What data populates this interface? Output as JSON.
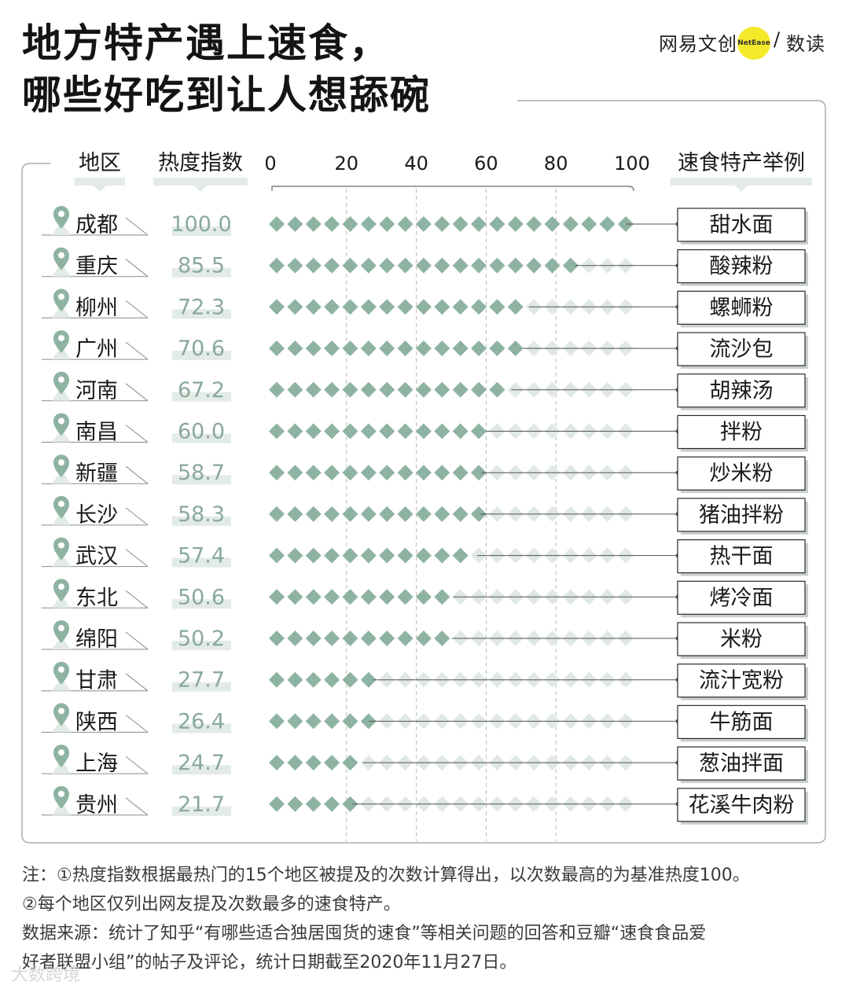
{
  "title_line1": "地方特产遇上速食，",
  "title_line2": "哪些好吃到让人想舔碗",
  "logo": {
    "brand": "网易文创",
    "badge": "NetEase",
    "slash": "/",
    "sub": "数读"
  },
  "headers": {
    "region": "地区",
    "index": "热度指数",
    "example": "速食特产举例"
  },
  "colors": {
    "accent": "#8fb3a2",
    "faint": "#dfe8e3",
    "text": "#1a1a1a",
    "label_bg": "#e2ebe6"
  },
  "chart_data": {
    "type": "bar",
    "xlim": [
      0,
      100
    ],
    "x_ticks": [
      "0",
      "20",
      "40",
      "60",
      "80",
      "100"
    ],
    "categories": [
      "成都",
      "重庆",
      "柳州",
      "广州",
      "河南",
      "南昌",
      "新疆",
      "长沙",
      "武汉",
      "东北",
      "绵阳",
      "甘肃",
      "陕西",
      "上海",
      "贵州"
    ],
    "values": [
      100.0,
      85.5,
      72.3,
      70.6,
      67.2,
      60.0,
      58.7,
      58.3,
      57.4,
      50.6,
      50.2,
      27.7,
      26.4,
      24.7,
      21.7
    ],
    "value_labels": [
      "100.0",
      "85.5",
      "72.3",
      "70.6",
      "67.2",
      "60.0",
      "58.7",
      "58.3",
      "57.4",
      "50.6",
      "50.2",
      "27.7",
      "26.4",
      "24.7",
      "21.7"
    ],
    "examples": [
      "甜水面",
      "酸辣粉",
      "螺蛳粉",
      "流沙包",
      "胡辣汤",
      "拌粉",
      "炒米粉",
      "猪油拌粉",
      "热干面",
      "烤冷面",
      "米粉",
      "流汁宽粉",
      "牛筋面",
      "葱油拌面",
      "花溪牛肉粉"
    ]
  },
  "notes": [
    "注：①热度指数根据最热门的15个地区被提及的次数计算得出，以次数最高的为基准热度100。",
    "②每个地区仅列出网友提及次数最多的速食特产。",
    "数据来源：统计了知乎“有哪些适合独居囤货的速食”等相关问题的回答和豆瓣“速食食品爱",
    "好者联盟小组”的帖子及评论，统计日期截至2020年11月27日。"
  ],
  "watermark": "大数跨境"
}
